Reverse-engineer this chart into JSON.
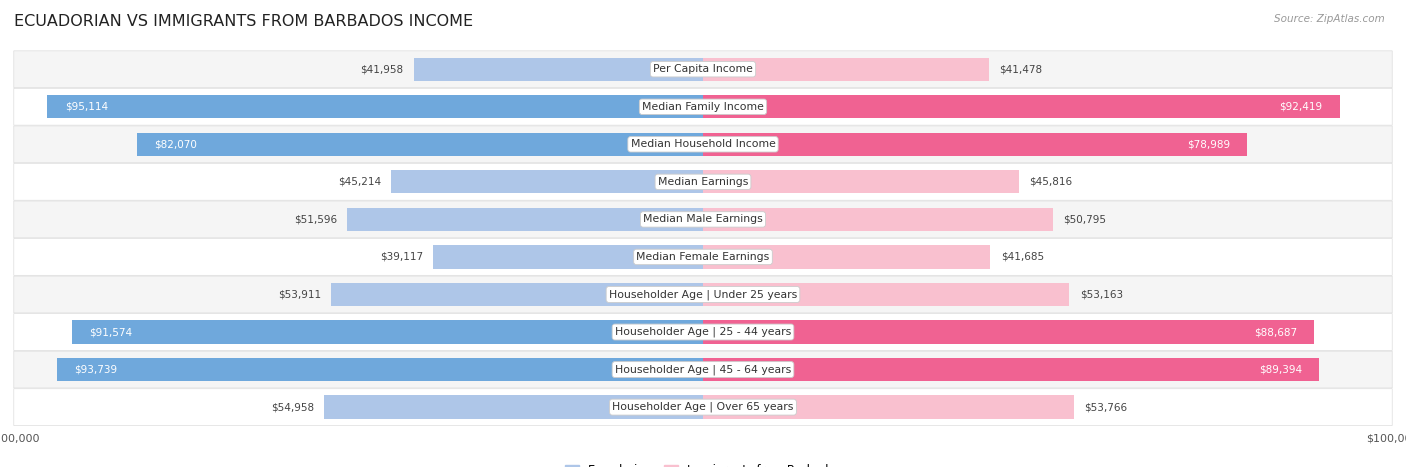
{
  "title": "ECUADORIAN VS IMMIGRANTS FROM BARBADOS INCOME",
  "source": "Source: ZipAtlas.com",
  "categories": [
    "Per Capita Income",
    "Median Family Income",
    "Median Household Income",
    "Median Earnings",
    "Median Male Earnings",
    "Median Female Earnings",
    "Householder Age | Under 25 years",
    "Householder Age | 25 - 44 years",
    "Householder Age | 45 - 64 years",
    "Householder Age | Over 65 years"
  ],
  "ecuadorian": [
    41958,
    95114,
    82070,
    45214,
    51596,
    39117,
    53911,
    91574,
    93739,
    54958
  ],
  "barbados": [
    41478,
    92419,
    78989,
    45816,
    50795,
    41685,
    53163,
    88687,
    89394,
    53766
  ],
  "max_val": 100000,
  "blue_light": "#aec6e8",
  "blue_dark": "#6fa8dc",
  "pink_light": "#f9c0cf",
  "pink_dark": "#f06292",
  "blue_label": "Ecuadorian",
  "pink_label": "Immigrants from Barbados",
  "bar_height": 0.62,
  "row_bg_light": "#f5f5f5",
  "row_bg_white": "#ffffff",
  "row_border": "#dddddd",
  "title_fontsize": 11.5,
  "label_fontsize": 7.8,
  "value_fontsize": 7.5,
  "axis_label_fontsize": 8,
  "large_threshold": 75000
}
